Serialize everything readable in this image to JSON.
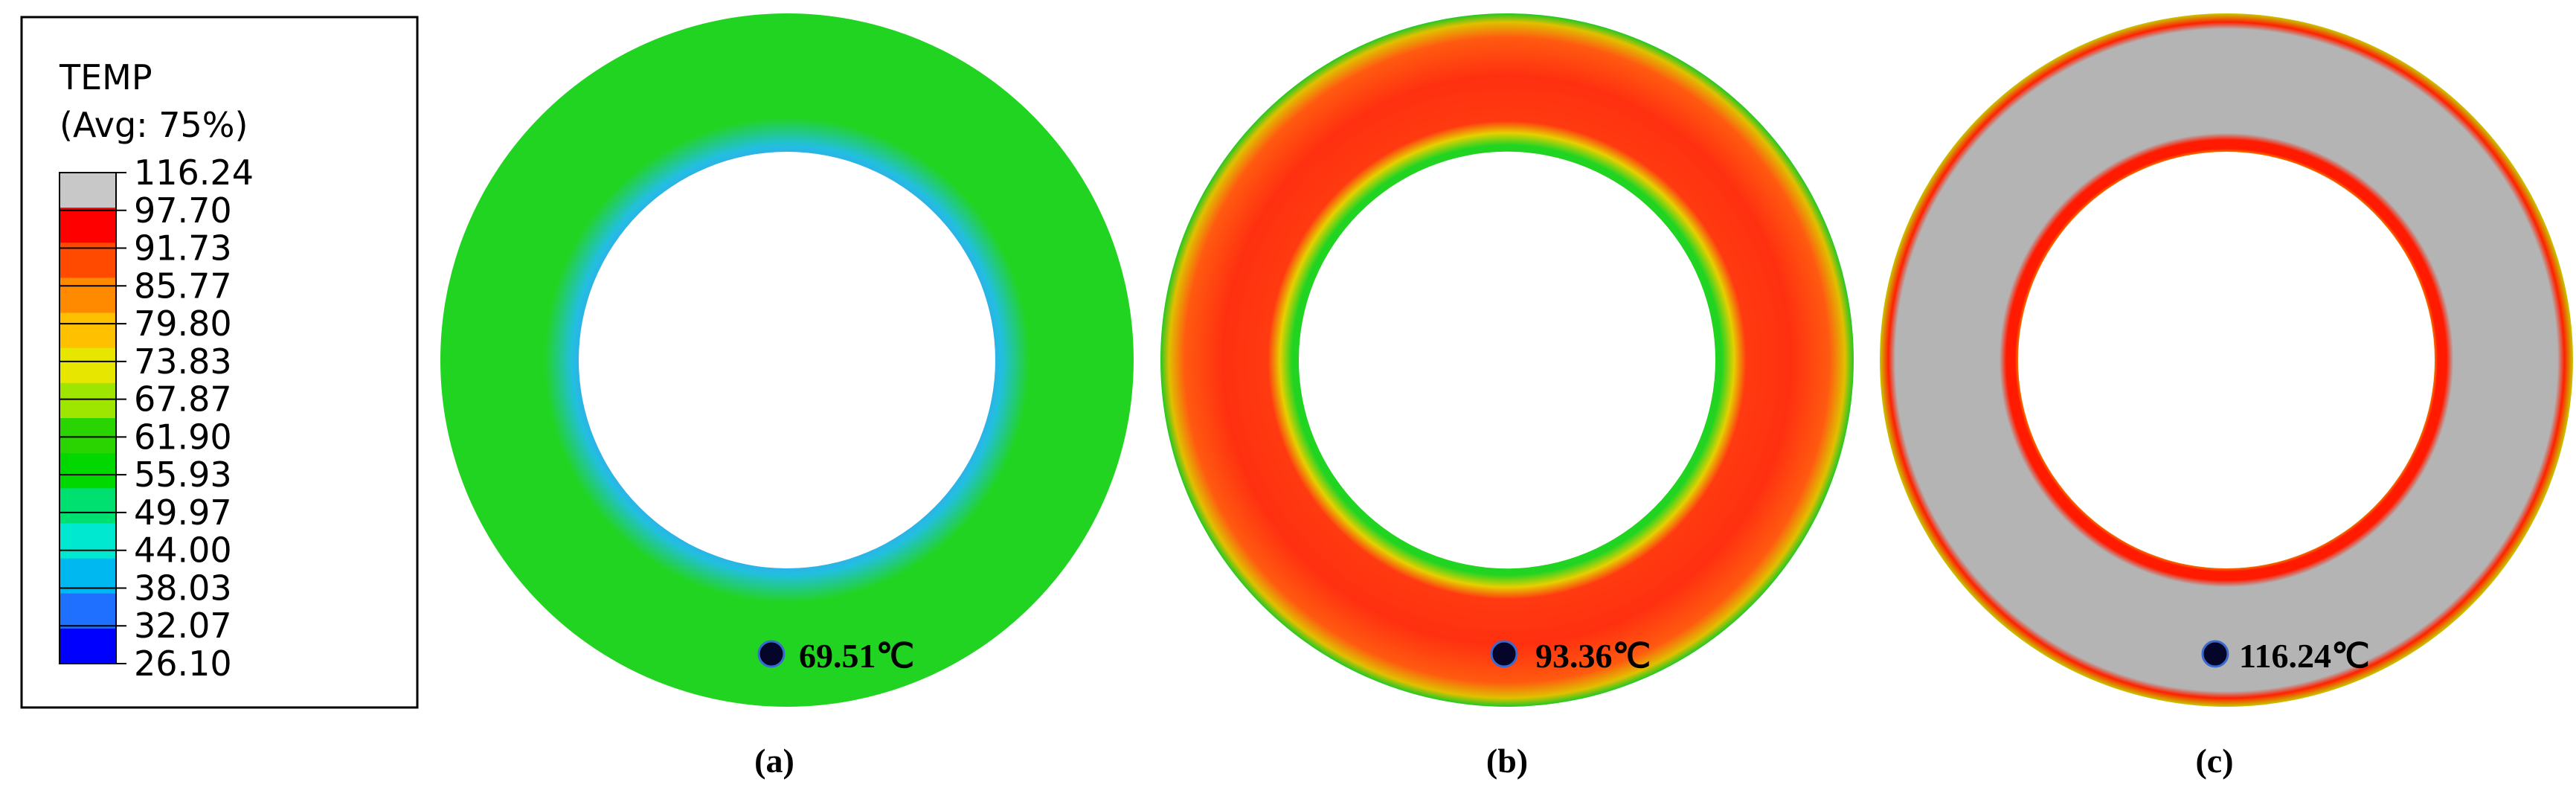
{
  "legend": {
    "title": "TEMP",
    "subtitle": "(Avg: 75%)",
    "values": [
      "116.24",
      "97.70",
      "91.73",
      "85.77",
      "79.80",
      "73.83",
      "67.87",
      "61.90",
      "55.93",
      "49.97",
      "44.00",
      "38.03",
      "32.07",
      "26.10"
    ],
    "colors": [
      "#c8c8c8",
      "#ff0000",
      "#ff4a00",
      "#ff8a00",
      "#ffc000",
      "#e6e600",
      "#9ee600",
      "#2ad400",
      "#00d800",
      "#00e070",
      "#00e8d0",
      "#00b8f0",
      "#2070ff",
      "#0000ff"
    ]
  },
  "panels": [
    {
      "caption": "(a)",
      "marker_label": "69.51℃",
      "colors": {
        "outer_edge": "#22d422",
        "ring": "#22d422",
        "inner_edge": "#35a8e8"
      }
    },
    {
      "caption": "(b)",
      "marker_label": "93.36℃",
      "colors": {
        "outer_edge": "#33cc33",
        "ring": "#ff3a10",
        "inner_band": "#22d422"
      }
    },
    {
      "caption": "(c)",
      "marker_label": "116.24℃",
      "colors": {
        "outer_edge": "#c8c800",
        "ring": "#b4b4b4",
        "inner_band": "#ff1a00",
        "inner_edge": "#22d422"
      }
    }
  ]
}
